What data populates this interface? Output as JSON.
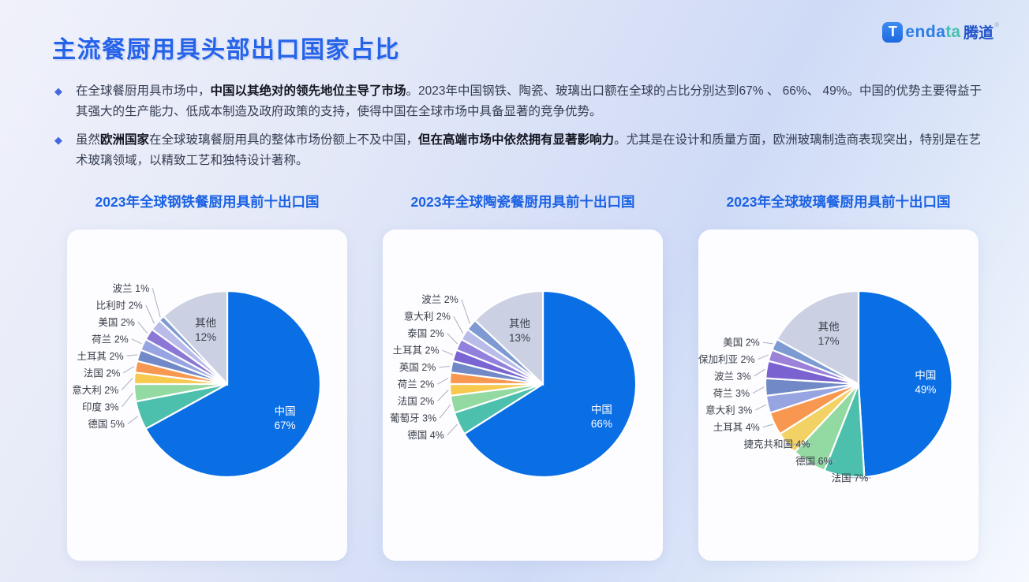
{
  "page": {
    "title": "主流餐厨用具头部出口国家占比"
  },
  "logo": {
    "icon_letter": "T",
    "text_en": "enda",
    "text_teal": "ta",
    "text_cn": "腾道",
    "reg": "®"
  },
  "colors": {
    "accent_blue": "#2563e9",
    "chart_title_blue": "#1b62e4",
    "china_blue": "#0a6ee4",
    "other_gray": "#cbd1e3",
    "card_bg": "#fdfdff"
  },
  "bullets": [
    {
      "segments": [
        {
          "text": "在全球餐厨用具市场中，",
          "bold": false
        },
        {
          "text": "中国以其绝对的领先地位主导了市场",
          "bold": true
        },
        {
          "text": "。2023年中国钢铁、陶瓷、玻璃出口额在全球的占比分别达到67% 、 66%、 49%。中国的优势主要得益于其强大的生产能力、低成本制造及政府政策的支持，使得中国在全球市场中具备显著的竞争优势。",
          "bold": false
        }
      ]
    },
    {
      "segments": [
        {
          "text": "虽然",
          "bold": false
        },
        {
          "text": "欧洲国家",
          "bold": true
        },
        {
          "text": "在全球玻璃餐厨用具的整体市场份额上不及中国，",
          "bold": false
        },
        {
          "text": "但在高端市场中依然拥有显著影响力",
          "bold": true
        },
        {
          "text": "。尤其是在设计和质量方面，欧洲玻璃制造商表现突出，特别是在艺术玻璃领域，以精致工艺和独特设计著称。",
          "bold": false
        }
      ]
    }
  ],
  "chart_data": [
    {
      "type": "pie",
      "title": "2023年全球钢铁餐厨用具前十出口国",
      "unit": "%",
      "labels": [
        "中国",
        "德国",
        "印度",
        "意大利",
        "法国",
        "土耳其",
        "荷兰",
        "美国",
        "比利时",
        "波兰",
        "其他"
      ],
      "values": [
        67,
        5,
        3,
        2,
        2,
        2,
        2,
        2,
        2,
        1,
        12
      ],
      "colors": [
        "#0a6ee4",
        "#4cc0ad",
        "#93d9a2",
        "#f7c94f",
        "#f8974f",
        "#7189c6",
        "#96a5e2",
        "#8a77d6",
        "#b9bce9",
        "#7d9ad2",
        "#cbd1e3"
      ],
      "legend_position": "none",
      "label_layout": "small slices labeled outside with leader lines; 中国 and 其他 labeled inside"
    },
    {
      "type": "pie",
      "title": "2023年全球陶瓷餐厨用具前十出口国",
      "unit": "%",
      "labels": [
        "中国",
        "德国",
        "葡萄牙",
        "法国",
        "荷兰",
        "英国",
        "土耳其",
        "泰国",
        "意大利",
        "波兰",
        "其他"
      ],
      "values": [
        66,
        4,
        3,
        2,
        2,
        2,
        2,
        2,
        2,
        2,
        13
      ],
      "colors": [
        "#0a6ee4",
        "#4cc0ad",
        "#93d9a2",
        "#f7c94f",
        "#f8974f",
        "#7189c6",
        "#7a65d2",
        "#9181dc",
        "#b9bce9",
        "#7d9ad2",
        "#cbd1e3"
      ],
      "legend_position": "none",
      "label_layout": "small slices labeled outside with leader lines; 中国 and 其他 labeled inside"
    },
    {
      "type": "pie",
      "title": "2023年全球玻璃餐厨用具前十出口国",
      "unit": "%",
      "labels": [
        "中国",
        "法国",
        "德国",
        "捷克共和国",
        "土耳其",
        "意大利",
        "荷兰",
        "波兰",
        "保加利亚",
        "美国",
        "其他"
      ],
      "values": [
        49,
        7,
        6,
        4,
        4,
        3,
        3,
        3,
        2,
        2,
        17
      ],
      "colors": [
        "#0a6ee4",
        "#4cc0ad",
        "#93d9a2",
        "#f2d264",
        "#f8974f",
        "#96a5e2",
        "#7189c6",
        "#7a62d0",
        "#9b82d8",
        "#7d9ad2",
        "#cbd1e3"
      ],
      "legend_position": "none",
      "label_layout": "small slices labeled outside with leader lines; 中国 and 其他 labeled inside"
    }
  ]
}
